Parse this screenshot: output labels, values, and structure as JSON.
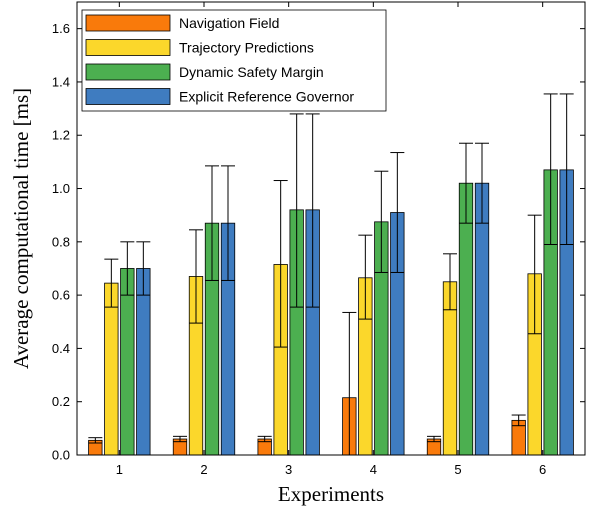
{
  "chart_data": {
    "type": "bar",
    "title": "",
    "xlabel": "Experiments",
    "ylabel": "Average computational time [ms]",
    "categories": [
      "1",
      "2",
      "3",
      "4",
      "5",
      "6"
    ],
    "ylim": [
      0,
      1.7
    ],
    "yticks": [
      0,
      0.2,
      0.4,
      0.6,
      0.8,
      1.0,
      1.2,
      1.4,
      1.6
    ],
    "ytick_labels": [
      "0.0",
      "0.2",
      "0.4",
      "0.6",
      "0.8",
      "1.0",
      "1.2",
      "1.4",
      "1.6"
    ],
    "grid": false,
    "legend_position": "top-left",
    "error_bars": true,
    "series": [
      {
        "name": "Navigation Field",
        "color": "#F97A0B",
        "values": [
          0.055,
          0.06,
          0.06,
          0.215,
          0.06,
          0.13
        ],
        "err_low": [
          0.045,
          0.05,
          0.05,
          0.0,
          0.05,
          0.11
        ],
        "err_high": [
          0.065,
          0.07,
          0.07,
          0.535,
          0.07,
          0.15
        ]
      },
      {
        "name": "Trajectory Predictions",
        "color": "#FBD72B",
        "values": [
          0.645,
          0.67,
          0.715,
          0.665,
          0.65,
          0.68
        ],
        "err_low": [
          0.555,
          0.495,
          0.405,
          0.51,
          0.545,
          0.455
        ],
        "err_high": [
          0.735,
          0.845,
          1.03,
          0.825,
          0.755,
          0.9
        ]
      },
      {
        "name": "Dynamic Safety Margin",
        "color": "#4CAF50",
        "values": [
          0.7,
          0.87,
          0.92,
          0.875,
          1.02,
          1.07
        ],
        "err_low": [
          0.6,
          0.655,
          0.555,
          0.685,
          0.87,
          0.79
        ],
        "err_high": [
          0.8,
          1.085,
          1.28,
          1.065,
          1.17,
          1.355
        ]
      },
      {
        "name": "Explicit Reference Governor",
        "color": "#3F7CC0",
        "values": [
          0.7,
          0.87,
          0.92,
          0.91,
          1.02,
          1.07
        ],
        "err_low": [
          0.6,
          0.655,
          0.555,
          0.685,
          0.87,
          0.79
        ],
        "err_high": [
          0.8,
          1.085,
          1.28,
          1.135,
          1.17,
          1.355
        ]
      }
    ]
  }
}
